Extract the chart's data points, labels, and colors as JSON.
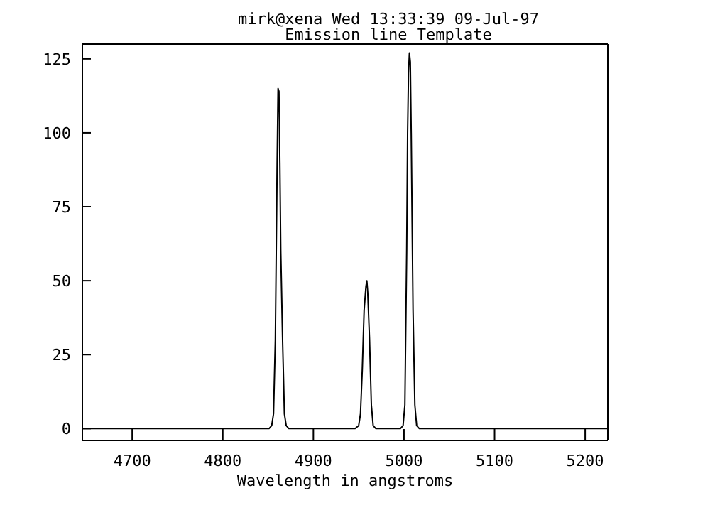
{
  "chart_data": {
    "type": "line",
    "title": "mirk@xena Wed 13:33:39 09-Jul-97",
    "subtitle": "Emission line Template",
    "xlabel": "Wavelength in angstroms",
    "x": [
      4645,
      4851,
      4854,
      4856,
      4858,
      4860,
      4861,
      4862,
      4863,
      4864,
      4866,
      4868,
      4870,
      4873,
      4946,
      4950,
      4952,
      4954,
      4956,
      4958,
      4959,
      4960,
      4962,
      4964,
      4966,
      4969,
      4996,
      4999,
      5001,
      5003,
      5004,
      5005,
      5006,
      5007,
      5008,
      5010,
      5012,
      5014,
      5017,
      5225
    ],
    "series": [
      {
        "color": "#000000",
        "values": [
          0,
          0,
          1,
          5,
          30,
          90,
          115,
          114,
          90,
          60,
          30,
          5,
          1,
          0,
          0,
          1,
          5,
          20,
          40,
          48,
          50,
          46,
          30,
          8,
          1,
          0,
          0,
          1,
          8,
          60,
          100,
          120,
          127,
          124,
          100,
          40,
          8,
          1,
          0,
          0
        ]
      }
    ],
    "xlim": [
      4645,
      5225
    ],
    "xticks": [
      4700,
      4800,
      4900,
      5000,
      5100,
      5200
    ],
    "ylim": [
      -4,
      130
    ],
    "yticks": [
      0,
      25,
      50,
      75,
      100,
      125
    ],
    "marker": "none",
    "line_style": "solid"
  }
}
